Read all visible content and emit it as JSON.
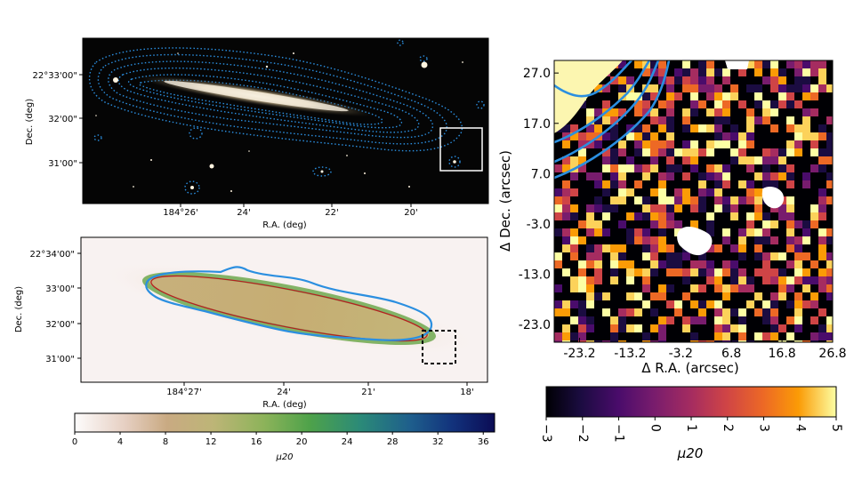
{
  "colors": {
    "contour_blue": "#2b8fe0",
    "ellipse_red": "#b52020",
    "frame": "#000000"
  },
  "chart_data": [
    {
      "type": "image",
      "title": "",
      "xlabel": "R.A. (deg)",
      "ylabel": "Dec. (deg)",
      "xticks": [
        "184°26'",
        "24'",
        "22'",
        "20'"
      ],
      "yticks": [
        "22°33'00\"",
        "32'00\"",
        "31'00\""
      ],
      "overlays": [
        "dotted blue isophote contours",
        "white box marking zoom region"
      ]
    },
    {
      "type": "heatmap",
      "title": "",
      "xlabel": "R.A. (deg)",
      "ylabel": "Dec. (deg)",
      "xticks": [
        "184°27'",
        "24'",
        "21'",
        "18'"
      ],
      "yticks": [
        "22°34'00\"",
        "33'00\"",
        "32'00\"",
        "31'00\""
      ],
      "colorbar": {
        "label": "μ20",
        "ticks": [
          "0",
          "4",
          "8",
          "12",
          "16",
          "20",
          "24",
          "28",
          "32",
          "36"
        ],
        "range": [
          0,
          37
        ],
        "colormap": "gist_earth_r"
      },
      "overlays": [
        "blue outer contour",
        "red ellipse",
        "dashed black zoom box"
      ]
    },
    {
      "type": "heatmap",
      "title": "",
      "xlabel": "Δ R.A. (arcsec)",
      "ylabel": "Δ Dec. (arcsec)",
      "xticks": [
        "-23.2",
        "-13.2",
        "-3.2",
        "6.8",
        "16.8",
        "26.8"
      ],
      "yticks": [
        "27.0",
        "17.0",
        "7.0",
        "-3.0",
        "-13.0",
        "-23.0"
      ],
      "xlim": [
        -28.2,
        26.8
      ],
      "ylim": [
        -26.5,
        29.5
      ],
      "colorbar": {
        "label": "μ20",
        "ticks": [
          "−3",
          "−2",
          "−1",
          "0",
          "1",
          "2",
          "3",
          "4",
          "5"
        ],
        "range": [
          -3,
          5
        ],
        "colormap": "inferno"
      },
      "overlays": [
        "four blue contour lines in upper-left corner"
      ]
    }
  ]
}
